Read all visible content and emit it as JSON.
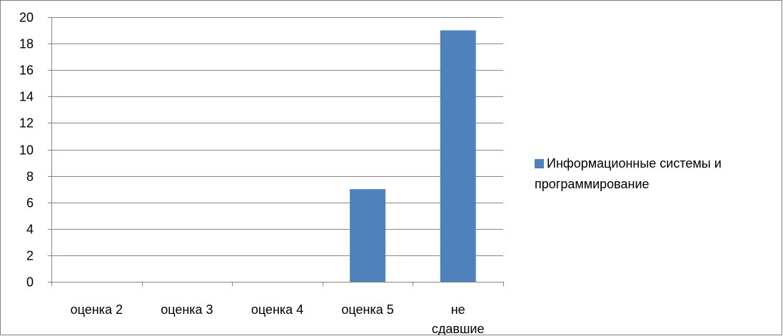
{
  "chart_data": {
    "type": "bar",
    "categories": [
      "оценка 2",
      "оценка 3",
      "оценка 4",
      "оценка 5",
      "не сдавшие"
    ],
    "category_lines": [
      [
        "оценка 2"
      ],
      [
        "оценка 3"
      ],
      [
        "оценка 4"
      ],
      [
        "оценка 5"
      ],
      [
        "не",
        "сдавшие"
      ]
    ],
    "series": [
      {
        "name": "Информационные системы и программирование",
        "values": [
          0,
          0,
          0,
          7,
          19
        ],
        "color": "#4f81bd"
      }
    ],
    "ylim": [
      0,
      20
    ],
    "yticks": [
      0,
      2,
      4,
      6,
      8,
      10,
      12,
      14,
      16,
      18,
      20
    ],
    "grid": true,
    "legend_position": "right",
    "title": "",
    "xlabel": "",
    "ylabel": ""
  }
}
